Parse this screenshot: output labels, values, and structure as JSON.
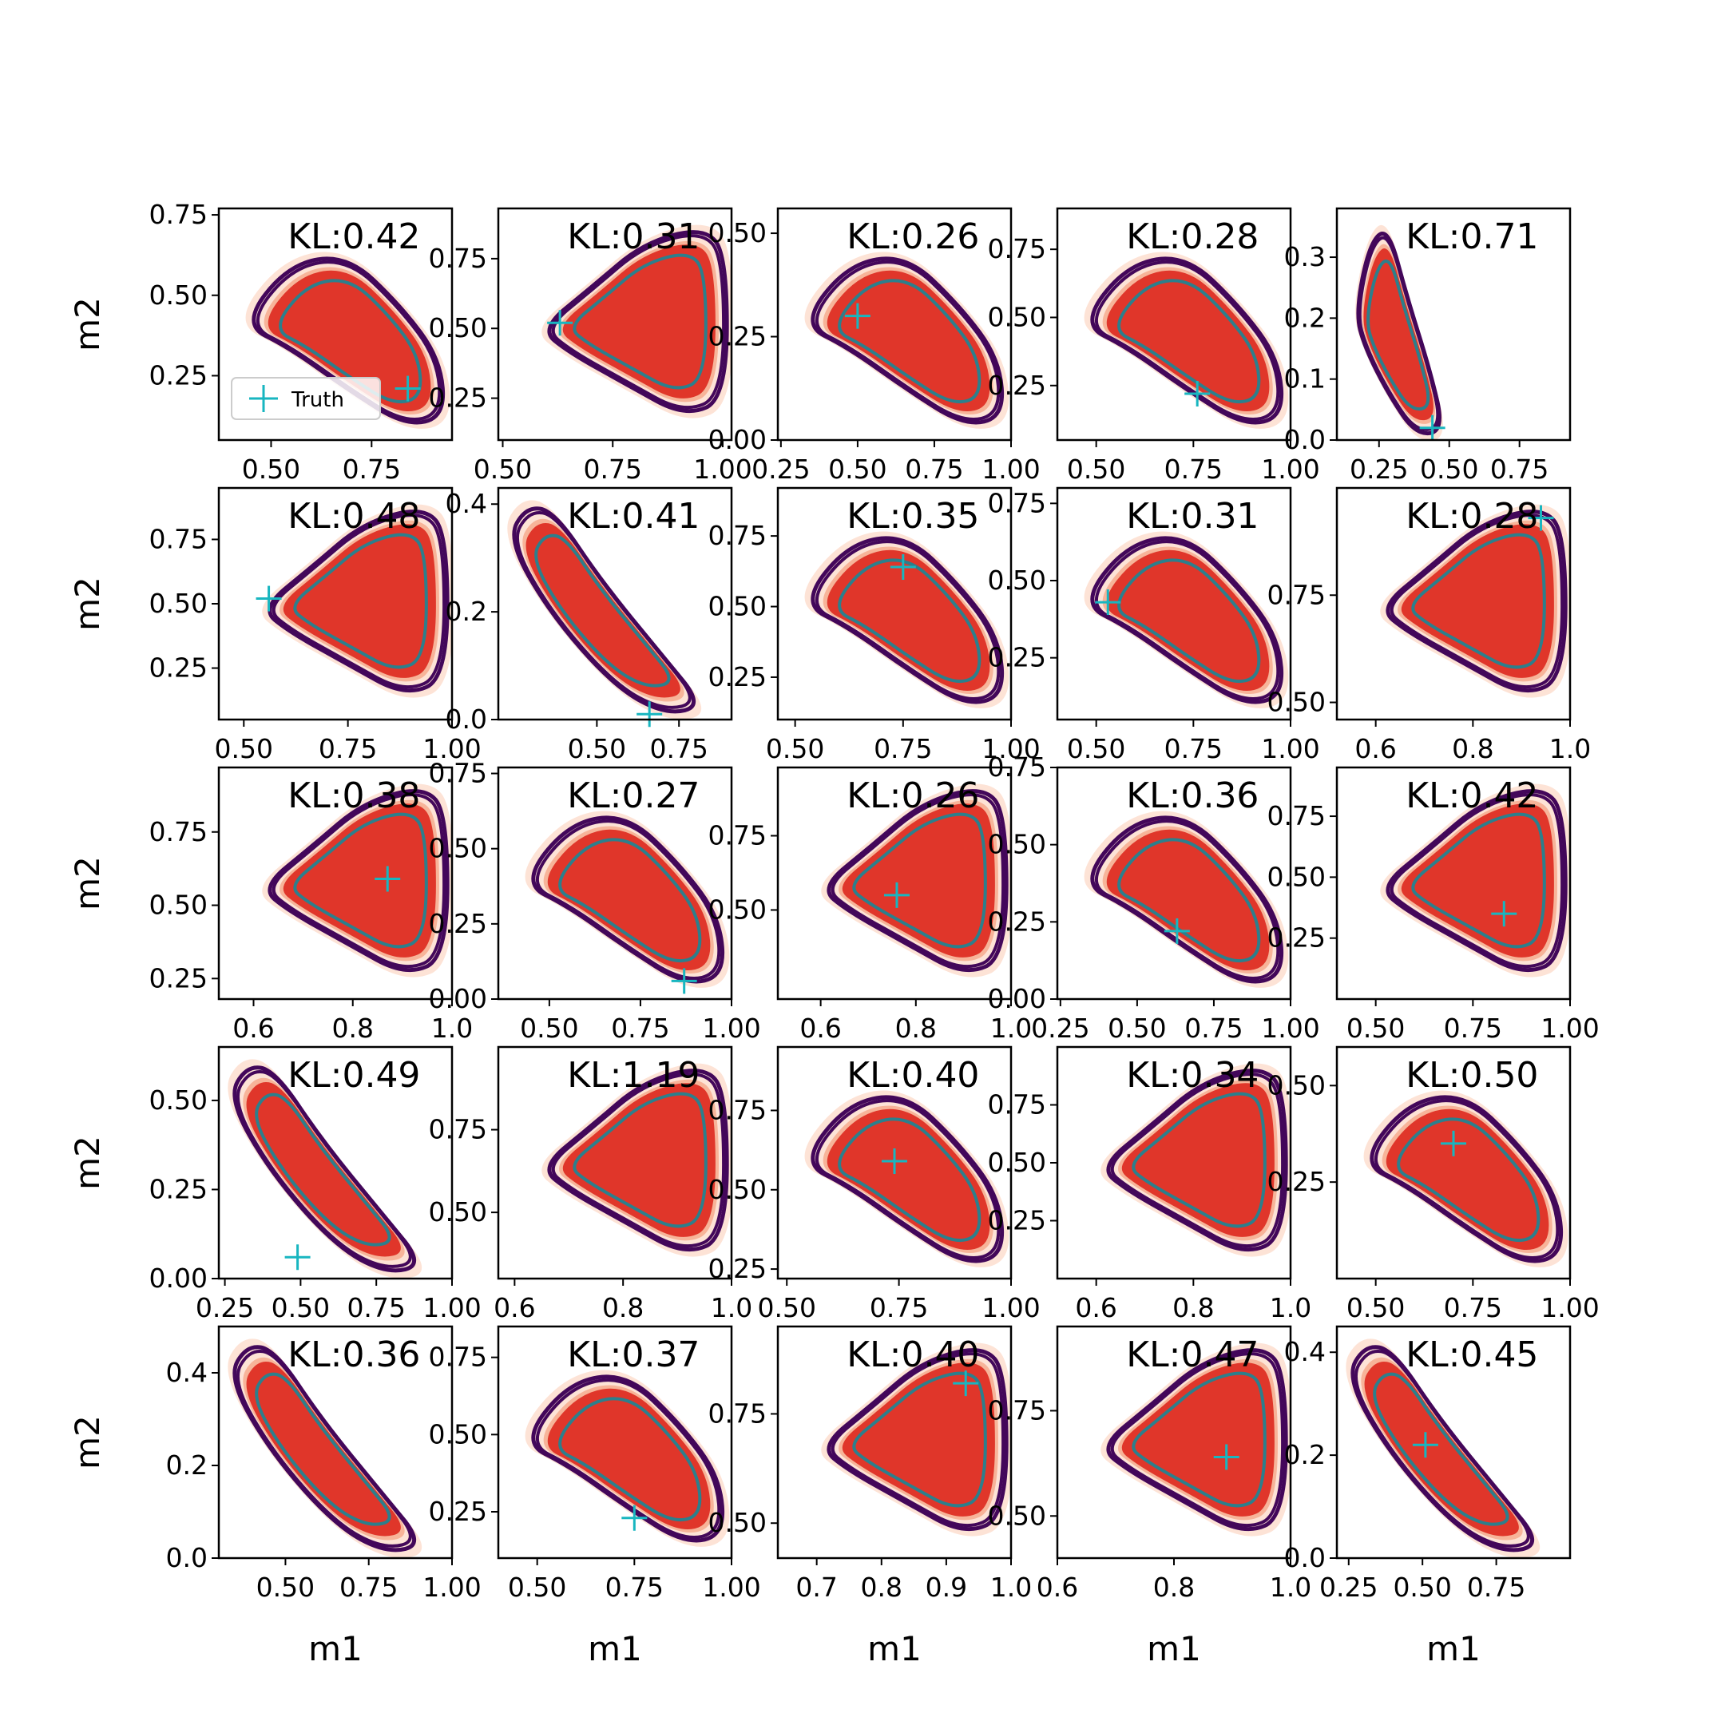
{
  "figure": {
    "xlabel": "m1",
    "ylabel": "m2",
    "legend_label": "Truth",
    "colors": {
      "fill_outer": "#fde3d6",
      "fill_mid": "#f7b499",
      "fill_inner": "#e0362a",
      "line_outer": "#43075a",
      "line_mid": "#ffffff",
      "line_inner": "#2c7f8c",
      "truth": "#18b6c0"
    }
  },
  "chart_data": [
    {
      "type": "contour",
      "title": "KL:0.42",
      "xlabel": "",
      "ylabel": "m2",
      "xlim": [
        0.37,
        0.95
      ],
      "ylim": [
        0.05,
        0.77
      ],
      "xticks": [
        "0.50",
        "0.75"
      ],
      "yticks": [
        "0.25",
        "0.50",
        "0.75"
      ],
      "truth": [
        0.84,
        0.21
      ],
      "shape": "tri_down",
      "legend": "upper-left"
    },
    {
      "type": "contour",
      "title": "KL:0.31",
      "xlabel": "",
      "ylabel": "",
      "xlim": [
        0.49,
        1.02
      ],
      "ylim": [
        0.1,
        0.93
      ],
      "xticks": [
        "0.50",
        "0.75",
        "1.00"
      ],
      "yticks": [
        "0.25",
        "0.50",
        "0.75"
      ],
      "truth": [
        0.63,
        0.52
      ],
      "shape": "tri_up"
    },
    {
      "type": "contour",
      "title": "KL:0.26",
      "xlabel": "",
      "ylabel": "",
      "xlim": [
        0.24,
        1.0
      ],
      "ylim": [
        0.0,
        0.56
      ],
      "xticks": [
        "0.25",
        "0.50",
        "0.75",
        "1.00"
      ],
      "yticks": [
        "0.00",
        "0.25",
        "0.50"
      ],
      "truth": [
        0.5,
        0.3
      ],
      "shape": "tri_down"
    },
    {
      "type": "contour",
      "title": "KL:0.28",
      "xlabel": "",
      "ylabel": "",
      "xlim": [
        0.4,
        1.0
      ],
      "ylim": [
        0.05,
        0.9
      ],
      "xticks": [
        "0.50",
        "0.75",
        "1.00"
      ],
      "yticks": [
        "0.25",
        "0.50",
        "0.75"
      ],
      "truth": [
        0.76,
        0.22
      ],
      "shape": "tri_down"
    },
    {
      "type": "contour",
      "title": "KL:0.71",
      "xlabel": "",
      "ylabel": "",
      "xlim": [
        0.1,
        0.93
      ],
      "ylim": [
        0.0,
        0.38
      ],
      "xticks": [
        "0.25",
        "0.50",
        "0.75"
      ],
      "yticks": [
        "0.0",
        "0.1",
        "0.2",
        "0.3"
      ],
      "truth": [
        0.44,
        0.02
      ],
      "shape": "tri_narrow"
    },
    {
      "type": "contour",
      "title": "KL:0.48",
      "xlabel": "",
      "ylabel": "m2",
      "xlim": [
        0.44,
        1.0
      ],
      "ylim": [
        0.05,
        0.95
      ],
      "xticks": [
        "0.50",
        "0.75",
        "1.00"
      ],
      "yticks": [
        "0.25",
        "0.50",
        "0.75"
      ],
      "truth": [
        0.56,
        0.52
      ],
      "shape": "tri_up"
    },
    {
      "type": "contour",
      "title": "KL:0.41",
      "xlabel": "",
      "ylabel": "",
      "xlim": [
        0.2,
        0.91
      ],
      "ylim": [
        0.0,
        0.43
      ],
      "xticks": [
        "0.50",
        "0.75"
      ],
      "yticks": [
        "0.0",
        "0.2",
        "0.4"
      ],
      "truth": [
        0.66,
        0.01
      ],
      "shape": "band_down"
    },
    {
      "type": "contour",
      "title": "KL:0.35",
      "xlabel": "",
      "ylabel": "",
      "xlim": [
        0.46,
        1.0
      ],
      "ylim": [
        0.1,
        0.92
      ],
      "xticks": [
        "0.50",
        "0.75",
        "1.00"
      ],
      "yticks": [
        "0.25",
        "0.50",
        "0.75"
      ],
      "truth": [
        0.75,
        0.64
      ],
      "shape": "tri_down"
    },
    {
      "type": "contour",
      "title": "KL:0.31",
      "xlabel": "",
      "ylabel": "",
      "xlim": [
        0.4,
        1.0
      ],
      "ylim": [
        0.05,
        0.8
      ],
      "xticks": [
        "0.50",
        "0.75",
        "1.00"
      ],
      "yticks": [
        "0.25",
        "0.50",
        "0.75"
      ],
      "truth": [
        0.53,
        0.43
      ],
      "shape": "tri_down"
    },
    {
      "type": "contour",
      "title": "KL:0.28",
      "xlabel": "",
      "ylabel": "",
      "xlim": [
        0.52,
        1.0
      ],
      "ylim": [
        0.46,
        1.0
      ],
      "xticks": [
        "0.6",
        "0.8",
        "1.0"
      ],
      "yticks": [
        "0.50",
        "0.75"
      ],
      "truth": [
        0.94,
        0.93
      ],
      "shape": "tri_up"
    },
    {
      "type": "contour",
      "title": "KL:0.38",
      "xlabel": "",
      "ylabel": "m2",
      "xlim": [
        0.53,
        1.0
      ],
      "ylim": [
        0.18,
        0.97
      ],
      "xticks": [
        "0.6",
        "0.8",
        "1.0"
      ],
      "yticks": [
        "0.25",
        "0.50",
        "0.75"
      ],
      "truth": [
        0.87,
        0.59
      ],
      "shape": "tri_up"
    },
    {
      "type": "contour",
      "title": "KL:0.27",
      "xlabel": "",
      "ylabel": "",
      "xlim": [
        0.36,
        1.0
      ],
      "ylim": [
        0.0,
        0.77
      ],
      "xticks": [
        "0.50",
        "0.75",
        "1.00"
      ],
      "yticks": [
        "0.00",
        "0.25",
        "0.50",
        "0.75"
      ],
      "truth": [
        0.87,
        0.06
      ],
      "shape": "tri_down"
    },
    {
      "type": "contour",
      "title": "KL:0.26",
      "xlabel": "",
      "ylabel": "",
      "xlim": [
        0.51,
        1.0
      ],
      "ylim": [
        0.2,
        0.98
      ],
      "xticks": [
        "0.6",
        "0.8",
        "1.0"
      ],
      "yticks": [
        "0.50",
        "0.75"
      ],
      "truth": [
        0.76,
        0.55
      ],
      "shape": "tri_up"
    },
    {
      "type": "contour",
      "title": "KL:0.36",
      "xlabel": "",
      "ylabel": "",
      "xlim": [
        0.24,
        1.0
      ],
      "ylim": [
        0.0,
        0.75
      ],
      "xticks": [
        "0.25",
        "0.50",
        "0.75",
        "1.00"
      ],
      "yticks": [
        "0.00",
        "0.25",
        "0.50",
        "0.75"
      ],
      "truth": [
        0.63,
        0.22
      ],
      "shape": "tri_down"
    },
    {
      "type": "contour",
      "title": "KL:0.42",
      "xlabel": "",
      "ylabel": "",
      "xlim": [
        0.4,
        1.0
      ],
      "ylim": [
        0.0,
        0.95
      ],
      "xticks": [
        "0.50",
        "0.75",
        "1.00"
      ],
      "yticks": [
        "0.25",
        "0.50",
        "0.75"
      ],
      "truth": [
        0.83,
        0.35
      ],
      "shape": "tri_up"
    },
    {
      "type": "contour",
      "title": "KL:0.49",
      "xlabel": "",
      "ylabel": "m2",
      "xlim": [
        0.23,
        1.0
      ],
      "ylim": [
        0.0,
        0.65
      ],
      "xticks": [
        "0.25",
        "0.50",
        "0.75",
        "1.00"
      ],
      "yticks": [
        "0.00",
        "0.25",
        "0.50"
      ],
      "truth": [
        0.49,
        0.06
      ],
      "shape": "band_down"
    },
    {
      "type": "contour",
      "title": "KL:1.19",
      "xlabel": "",
      "ylabel": "",
      "xlim": [
        0.57,
        1.0
      ],
      "ylim": [
        0.3,
        1.0
      ],
      "xticks": [
        "0.6",
        "0.8",
        "1.0"
      ],
      "yticks": [
        "0.50",
        "0.75"
      ],
      "truth": null,
      "shape": "tri_up"
    },
    {
      "type": "contour",
      "title": "KL:0.40",
      "xlabel": "",
      "ylabel": "",
      "xlim": [
        0.48,
        1.0
      ],
      "ylim": [
        0.22,
        0.95
      ],
      "xticks": [
        "0.50",
        "0.75",
        "1.00"
      ],
      "yticks": [
        "0.25",
        "0.50",
        "0.75"
      ],
      "truth": [
        0.74,
        0.59
      ],
      "shape": "tri_down"
    },
    {
      "type": "contour",
      "title": "KL:0.34",
      "xlabel": "",
      "ylabel": "",
      "xlim": [
        0.52,
        1.0
      ],
      "ylim": [
        0.0,
        1.0
      ],
      "xticks": [
        "0.6",
        "0.8",
        "1.0"
      ],
      "yticks": [
        "0.25",
        "0.50",
        "0.75"
      ],
      "truth": null,
      "shape": "tri_up"
    },
    {
      "type": "contour",
      "title": "KL:0.50",
      "xlabel": "",
      "ylabel": "",
      "xlim": [
        0.4,
        1.0
      ],
      "ylim": [
        0.0,
        0.6
      ],
      "xticks": [
        "0.50",
        "0.75",
        "1.00"
      ],
      "yticks": [
        "0.25",
        "0.50"
      ],
      "truth": [
        0.7,
        0.35
      ],
      "shape": "tri_down"
    },
    {
      "type": "contour",
      "title": "KL:0.36",
      "xlabel": "m1",
      "ylabel": "m2",
      "xlim": [
        0.3,
        1.0
      ],
      "ylim": [
        0.0,
        0.5
      ],
      "xticks": [
        "0.50",
        "0.75",
        "1.00"
      ],
      "yticks": [
        "0.0",
        "0.2",
        "0.4"
      ],
      "truth": null,
      "shape": "band_down"
    },
    {
      "type": "contour",
      "title": "KL:0.37",
      "xlabel": "m1",
      "ylabel": "",
      "xlim": [
        0.4,
        1.0
      ],
      "ylim": [
        0.1,
        0.85
      ],
      "xticks": [
        "0.50",
        "0.75",
        "1.00"
      ],
      "yticks": [
        "0.25",
        "0.50",
        "0.75"
      ],
      "truth": [
        0.75,
        0.23
      ],
      "shape": "tri_down"
    },
    {
      "type": "contour",
      "title": "KL:0.40",
      "xlabel": "m1",
      "ylabel": "",
      "xlim": [
        0.64,
        1.0
      ],
      "ylim": [
        0.42,
        0.95
      ],
      "xticks": [
        "0.7",
        "0.8",
        "0.9",
        "1.0"
      ],
      "yticks": [
        "0.50",
        "0.75"
      ],
      "truth": [
        0.93,
        0.82
      ],
      "shape": "tri_up"
    },
    {
      "type": "contour",
      "title": "KL:0.47",
      "xlabel": "m1",
      "ylabel": "",
      "xlim": [
        0.6,
        1.0
      ],
      "ylim": [
        0.4,
        0.95
      ],
      "xticks": [
        "0.6",
        "0.8",
        "1.0"
      ],
      "yticks": [
        "0.50",
        "0.75"
      ],
      "truth": [
        0.89,
        0.64
      ],
      "shape": "tri_up"
    },
    {
      "type": "contour",
      "title": "KL:0.45",
      "xlabel": "m1",
      "ylabel": "",
      "xlim": [
        0.21,
        1.0
      ],
      "ylim": [
        0.0,
        0.45
      ],
      "xticks": [
        "0.25",
        "0.50",
        "0.75"
      ],
      "yticks": [
        "0.0",
        "0.2",
        "0.4"
      ],
      "truth": [
        0.51,
        0.22
      ],
      "shape": "band_down"
    }
  ]
}
